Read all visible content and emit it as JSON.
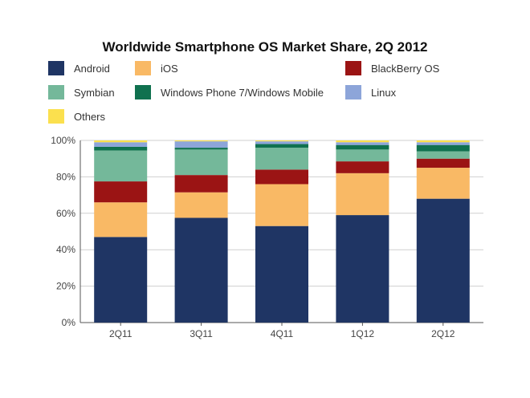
{
  "chart_data": {
    "type": "bar",
    "stacked": true,
    "title": "Worldwide Smartphone OS Market Share, 2Q 2012",
    "xlabel": "",
    "ylabel": "",
    "ylim": [
      0,
      100
    ],
    "y_tick_values": [
      0,
      20,
      40,
      60,
      80,
      100
    ],
    "y_tick_labels": [
      "0%",
      "20%",
      "40%",
      "60%",
      "80%",
      "100%"
    ],
    "grid": true,
    "legend_position": "top",
    "categories": [
      "2Q11",
      "3Q11",
      "4Q11",
      "1Q12",
      "2Q12"
    ],
    "series": [
      {
        "name": "Android",
        "color": "#1f3564",
        "values": [
          47,
          57.5,
          53,
          59,
          68
        ]
      },
      {
        "name": "iOS",
        "color": "#f9b965",
        "values": [
          19,
          14,
          23,
          23,
          17
        ]
      },
      {
        "name": "BlackBerry OS",
        "color": "#9b1414",
        "values": [
          11.5,
          9.5,
          8,
          6.5,
          5
        ]
      },
      {
        "name": "Symbian",
        "color": "#74b89a",
        "values": [
          17,
          14,
          12,
          6.5,
          4
        ]
      },
      {
        "name": "Windows Phone 7/Windows Mobile",
        "color": "#10714f",
        "values": [
          2,
          1,
          2,
          2.5,
          3.5
        ]
      },
      {
        "name": "Linux",
        "color": "#8da5d9",
        "values": [
          2.5,
          3.5,
          1.5,
          1.5,
          1.5
        ]
      },
      {
        "name": "Others",
        "color": "#fbe04e",
        "values": [
          1,
          0.5,
          0.5,
          1,
          1
        ]
      }
    ]
  }
}
